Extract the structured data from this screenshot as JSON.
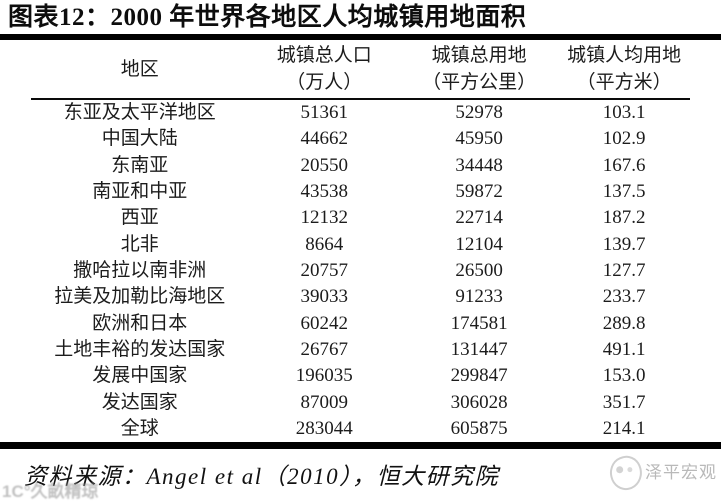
{
  "title": "图表12：2000 年世界各地区人均城镇用地面积",
  "table": {
    "columns": [
      {
        "label": "地区",
        "unit": ""
      },
      {
        "label": "城镇总人口",
        "unit": "（万人）"
      },
      {
        "label": "城镇总用地",
        "unit": "（平方公里）"
      },
      {
        "label": "城镇人均用地",
        "unit": "（平方米）"
      }
    ],
    "rows": [
      [
        "东亚及太平洋地区",
        "51361",
        "52978",
        "103.1"
      ],
      [
        "中国大陆",
        "44662",
        "45950",
        "102.9"
      ],
      [
        "东南亚",
        "20550",
        "34448",
        "167.6"
      ],
      [
        "南亚和中亚",
        "43538",
        "59872",
        "137.5"
      ],
      [
        "西亚",
        "12132",
        "22714",
        "187.2"
      ],
      [
        "北非",
        "8664",
        "12104",
        "139.7"
      ],
      [
        "撒哈拉以南非洲",
        "20757",
        "26500",
        "127.7"
      ],
      [
        "拉美及加勒比海地区",
        "39033",
        "91233",
        "233.7"
      ],
      [
        "欧洲和日本",
        "60242",
        "174581",
        "289.8"
      ],
      [
        "土地丰裕的发达国家",
        "26767",
        "131447",
        "491.1"
      ],
      [
        "发展中国家",
        "196035",
        "299847",
        "153.0"
      ],
      [
        "发达国家",
        "87009",
        "306028",
        "351.7"
      ],
      [
        "全球",
        "283044",
        "605875",
        "214.1"
      ]
    ]
  },
  "source": "资料来源：Angel et al（2010），恒大研究院",
  "watermark_right": "泽平宏观",
  "watermark_left": "1C°久畝精琼",
  "colors": {
    "rule": "#000000",
    "text": "#1c1c1c",
    "watermark_gray": "#b9b9b9"
  },
  "chart_data": {
    "type": "table",
    "title": "图表12：2000 年世界各地区人均城镇用地面积",
    "columns": [
      "地区",
      "城镇总人口（万人）",
      "城镇总用地（平方公里）",
      "城镇人均用地（平方米）"
    ],
    "rows": [
      {
        "region": "东亚及太平洋地区",
        "urban_population_10k": 51361,
        "urban_land_km2": 52978,
        "per_capita_m2": 103.1
      },
      {
        "region": "中国大陆",
        "urban_population_10k": 44662,
        "urban_land_km2": 45950,
        "per_capita_m2": 102.9
      },
      {
        "region": "东南亚",
        "urban_population_10k": 20550,
        "urban_land_km2": 34448,
        "per_capita_m2": 167.6
      },
      {
        "region": "南亚和中亚",
        "urban_population_10k": 43538,
        "urban_land_km2": 59872,
        "per_capita_m2": 137.5
      },
      {
        "region": "西亚",
        "urban_population_10k": 12132,
        "urban_land_km2": 22714,
        "per_capita_m2": 187.2
      },
      {
        "region": "北非",
        "urban_population_10k": 8664,
        "urban_land_km2": 12104,
        "per_capita_m2": 139.7
      },
      {
        "region": "撒哈拉以南非洲",
        "urban_population_10k": 20757,
        "urban_land_km2": 26500,
        "per_capita_m2": 127.7
      },
      {
        "region": "拉美及加勒比海地区",
        "urban_population_10k": 39033,
        "urban_land_km2": 91233,
        "per_capita_m2": 233.7
      },
      {
        "region": "欧洲和日本",
        "urban_population_10k": 60242,
        "urban_land_km2": 174581,
        "per_capita_m2": 289.8
      },
      {
        "region": "土地丰裕的发达国家",
        "urban_population_10k": 26767,
        "urban_land_km2": 131447,
        "per_capita_m2": 491.1
      },
      {
        "region": "发展中国家",
        "urban_population_10k": 196035,
        "urban_land_km2": 299847,
        "per_capita_m2": 153.0
      },
      {
        "region": "发达国家",
        "urban_population_10k": 87009,
        "urban_land_km2": 306028,
        "per_capita_m2": 351.7
      },
      {
        "region": "全球",
        "urban_population_10k": 283044,
        "urban_land_km2": 605875,
        "per_capita_m2": 214.1
      }
    ],
    "source_note": "资料来源：Angel et al（2010），恒大研究院"
  }
}
